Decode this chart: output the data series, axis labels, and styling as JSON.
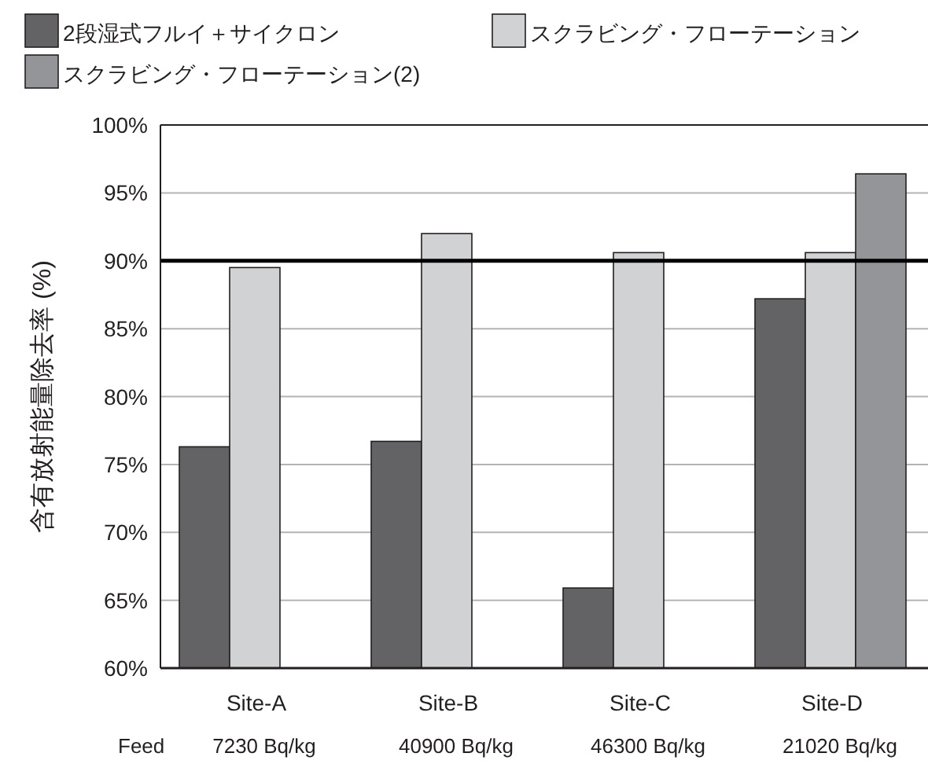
{
  "chart_data": {
    "type": "bar",
    "ylabel": "含有放射能量除去率 (%)",
    "categories": [
      "Site-A",
      "Site-B",
      "Site-C",
      "Site-D"
    ],
    "series": [
      {
        "name": "2段湿式フルイ＋サイクロン",
        "color": "#636365",
        "values": [
          76.3,
          76.7,
          65.9,
          87.2
        ]
      },
      {
        "name": "スクラビング・フローテーション",
        "color": "#d1d2d4",
        "values": [
          89.5,
          92.0,
          90.6,
          90.6
        ]
      },
      {
        "name": "スクラビング・フローテーション(2)",
        "color": "#939598",
        "values": [
          null,
          null,
          null,
          96.4
        ]
      }
    ],
    "ylim": [
      60,
      100
    ],
    "yticks": [
      {
        "value": 60,
        "label": "60%"
      },
      {
        "value": 65,
        "label": "65%"
      },
      {
        "value": 70,
        "label": "70%"
      },
      {
        "value": 75,
        "label": "75%"
      },
      {
        "value": 80,
        "label": "80%"
      },
      {
        "value": 85,
        "label": "85%"
      },
      {
        "value": 90,
        "label": "90%"
      },
      {
        "value": 95,
        "label": "95%"
      },
      {
        "value": 100,
        "label": "100%"
      }
    ],
    "ref_lines": [
      {
        "axis": "y",
        "value": 90,
        "color": "#000000"
      }
    ],
    "annotations": [
      "Feed",
      "7230 Bq/kg",
      "40900 Bq/kg",
      "46300 Bq/kg",
      "21020 Bq/kg"
    ],
    "grid": "y",
    "legend": "top"
  }
}
